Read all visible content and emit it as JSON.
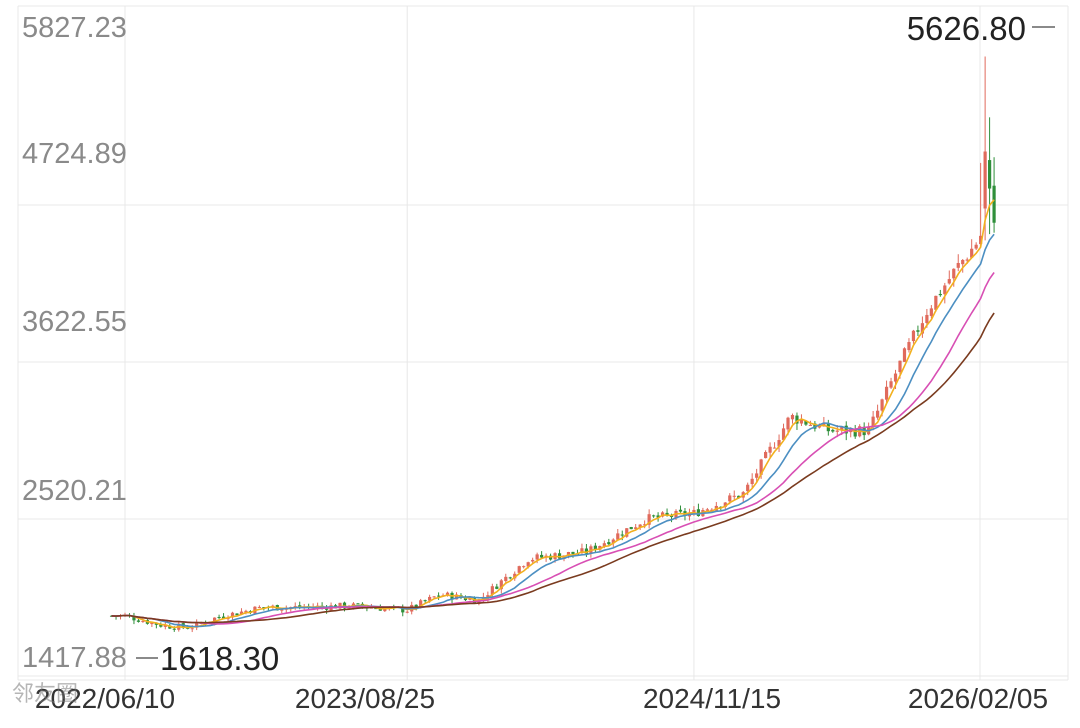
{
  "chart_data": {
    "type": "candlestick",
    "title": "",
    "y_ticks": [
      "5827.23",
      "4724.89",
      "3622.55",
      "2520.21",
      "1417.88"
    ],
    "x_ticks": [
      "2022/06/10",
      "2023/08/25",
      "2024/11/15",
      "2026/02/05"
    ],
    "ylim": [
      1417.88,
      5827.23
    ],
    "grid": true,
    "annotations": {
      "high": "5626.80",
      "low": "1618.30"
    },
    "colors": {
      "up": "#e06a5c",
      "down": "#2f8f3a",
      "ma_short": "#f2b01e",
      "ma_mid": "#4c8fc2",
      "ma_long": "#d84fb4",
      "ma_longest": "#7a3b1f",
      "grid": "#e8e8e8",
      "axis_text": "#8a8a8a",
      "label_text": "#222222"
    },
    "key_points": [
      {
        "date": "2022/06/10",
        "close": 1700
      },
      {
        "date": "2022/08/10",
        "close": 1630
      },
      {
        "date": "2022/09/20",
        "close": 1618.3
      },
      {
        "date": "2022/11/01",
        "close": 1690
      },
      {
        "date": "2023/01/10",
        "close": 1760
      },
      {
        "date": "2023/03/10",
        "close": 1760
      },
      {
        "date": "2023/06/01",
        "close": 1770
      },
      {
        "date": "2023/08/25",
        "close": 1740
      },
      {
        "date": "2023/10/15",
        "close": 1850
      },
      {
        "date": "2023/12/15",
        "close": 1810
      },
      {
        "date": "2024/03/01",
        "close": 2100
      },
      {
        "date": "2024/06/01",
        "close": 2150
      },
      {
        "date": "2024/09/01",
        "close": 2380
      },
      {
        "date": "2024/11/15",
        "close": 2420
      },
      {
        "date": "2025/02/01",
        "close": 2560
      },
      {
        "date": "2025/04/15",
        "close": 3100
      },
      {
        "date": "2025/06/15",
        "close": 3000
      },
      {
        "date": "2025/08/15",
        "close": 3000
      },
      {
        "date": "2025/10/01",
        "close": 3450
      },
      {
        "date": "2025/11/15",
        "close": 3850
      },
      {
        "date": "2026/01/01",
        "close": 4150
      },
      {
        "date": "2026/02/05",
        "close": 4350
      },
      {
        "date": "2026/03/01",
        "close": 4850
      }
    ]
  },
  "watermark": "邻友圈"
}
